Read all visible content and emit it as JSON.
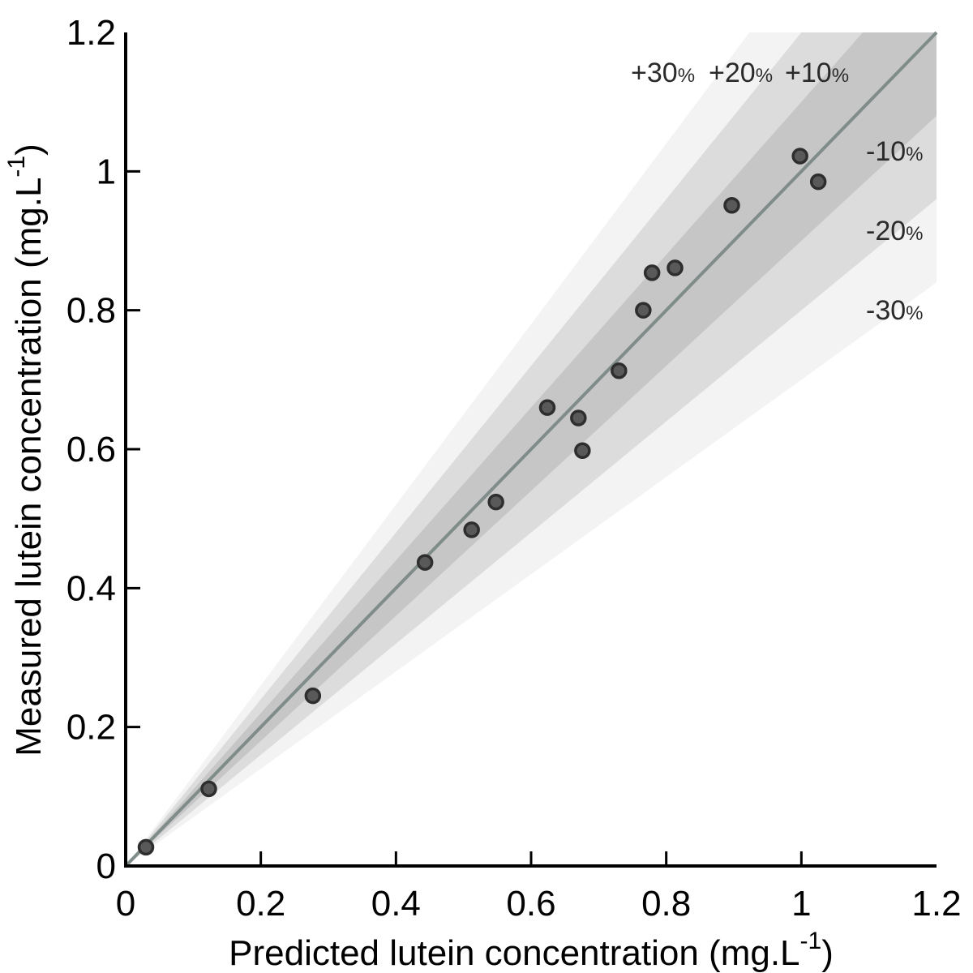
{
  "chart_data": {
    "type": "scatter",
    "title": "",
    "xlabel": "Predicted lutein concentration (mg.L",
    "ylabel": "Measured lutein concentration (mg.L",
    "label_unit_superscript": "-1",
    "label_unit_close": ")",
    "xlim": [
      0,
      1.2
    ],
    "ylim": [
      0,
      1.2
    ],
    "x_ticks": [
      0,
      0.2,
      0.4,
      0.6,
      0.8,
      1,
      1.2
    ],
    "y_ticks": [
      0,
      0.2,
      0.4,
      0.6,
      0.8,
      1,
      1.2
    ],
    "x_tick_labels": [
      "0",
      "0.2",
      "0.4",
      "0.6",
      "0.8",
      "1",
      "1.2"
    ],
    "y_tick_labels": [
      "0",
      "0.2",
      "0.4",
      "0.6",
      "0.8",
      "1",
      "1.2"
    ],
    "grid": false,
    "reference_line": {
      "slope": 1,
      "color": "#7f8c8a"
    },
    "bands": [
      {
        "pct": 30,
        "upper_label": "+30",
        "lower_label": "-30",
        "color": "#f3f3f3"
      },
      {
        "pct": 20,
        "upper_label": "+20",
        "lower_label": "-20",
        "color": "#dcdcdc"
      },
      {
        "pct": 10,
        "upper_label": "+10",
        "lower_label": "-10",
        "color": "#c6c6c6"
      }
    ],
    "percent_sign": "%",
    "point_color": "#595959",
    "points": [
      {
        "x": 0.03,
        "y": 0.027
      },
      {
        "x": 0.123,
        "y": 0.111
      },
      {
        "x": 0.277,
        "y": 0.245
      },
      {
        "x": 0.443,
        "y": 0.437
      },
      {
        "x": 0.512,
        "y": 0.484
      },
      {
        "x": 0.548,
        "y": 0.524
      },
      {
        "x": 0.624,
        "y": 0.66
      },
      {
        "x": 0.67,
        "y": 0.645
      },
      {
        "x": 0.676,
        "y": 0.598
      },
      {
        "x": 0.73,
        "y": 0.713
      },
      {
        "x": 0.766,
        "y": 0.8
      },
      {
        "x": 0.779,
        "y": 0.854
      },
      {
        "x": 0.813,
        "y": 0.861
      },
      {
        "x": 0.897,
        "y": 0.951
      },
      {
        "x": 0.998,
        "y": 1.022
      },
      {
        "x": 1.025,
        "y": 0.985
      }
    ]
  }
}
